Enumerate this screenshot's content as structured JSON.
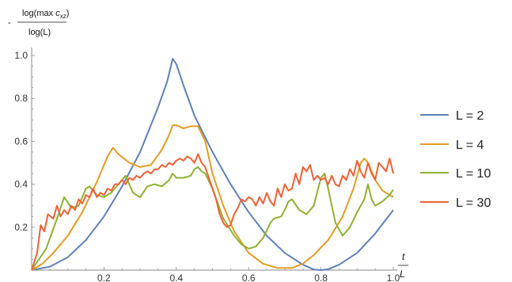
{
  "chart_data": {
    "type": "line",
    "title": "",
    "ylabel_prefix": "-",
    "ylabel_numerator_prefix": "log(max ",
    "ylabel_numerator_var": "c",
    "ylabel_numerator_sub": "xz",
    "ylabel_numerator_suffix": ")",
    "ylabel_denominator": "log(L)",
    "xlabel_numerator": "t",
    "xlabel_denominator": "L",
    "xlim": [
      0,
      1.0
    ],
    "ylim": [
      0,
      1.0
    ],
    "x_ticks": [
      0.2,
      0.4,
      0.6,
      0.8,
      1.0
    ],
    "x_tick_labels": [
      "0.2",
      "0.4",
      "0.6",
      "0.8",
      "1.0"
    ],
    "y_ticks": [
      0.2,
      0.4,
      0.6,
      0.8,
      1.0
    ],
    "y_tick_labels": [
      "0.2",
      "0.4",
      "0.6",
      "0.8",
      "1.0"
    ],
    "grid": false,
    "legend_position": "right",
    "series": [
      {
        "name": "L = 2",
        "color": "#5E81B5",
        "points": [
          [
            0,
            0
          ],
          [
            0.05,
            0.016
          ],
          [
            0.1,
            0.06
          ],
          [
            0.15,
            0.14
          ],
          [
            0.2,
            0.25
          ],
          [
            0.25,
            0.39
          ],
          [
            0.3,
            0.55
          ],
          [
            0.35,
            0.76
          ],
          [
            0.375,
            0.88
          ],
          [
            0.39,
            0.985
          ],
          [
            0.4,
            0.96
          ],
          [
            0.42,
            0.86
          ],
          [
            0.45,
            0.72
          ],
          [
            0.5,
            0.55
          ],
          [
            0.55,
            0.4
          ],
          [
            0.6,
            0.27
          ],
          [
            0.65,
            0.16
          ],
          [
            0.7,
            0.08
          ],
          [
            0.75,
            0.025
          ],
          [
            0.78,
            0.003
          ],
          [
            0.8,
            0
          ],
          [
            0.82,
            0.004
          ],
          [
            0.85,
            0.025
          ],
          [
            0.9,
            0.08
          ],
          [
            0.95,
            0.17
          ],
          [
            1.0,
            0.28
          ]
        ]
      },
      {
        "name": "L = 4",
        "color": "#E19C24",
        "points": [
          [
            0,
            0
          ],
          [
            0.03,
            0.03
          ],
          [
            0.06,
            0.08
          ],
          [
            0.1,
            0.16
          ],
          [
            0.14,
            0.27
          ],
          [
            0.18,
            0.41
          ],
          [
            0.21,
            0.53
          ],
          [
            0.225,
            0.57
          ],
          [
            0.24,
            0.54
          ],
          [
            0.27,
            0.5
          ],
          [
            0.3,
            0.48
          ],
          [
            0.33,
            0.49
          ],
          [
            0.36,
            0.56
          ],
          [
            0.38,
            0.63
          ],
          [
            0.39,
            0.675
          ],
          [
            0.4,
            0.675
          ],
          [
            0.42,
            0.66
          ],
          [
            0.44,
            0.67
          ],
          [
            0.46,
            0.67
          ],
          [
            0.48,
            0.6
          ],
          [
            0.5,
            0.45
          ],
          [
            0.53,
            0.3
          ],
          [
            0.56,
            0.18
          ],
          [
            0.6,
            0.08
          ],
          [
            0.64,
            0.03
          ],
          [
            0.68,
            0.01
          ],
          [
            0.72,
            0.01
          ],
          [
            0.75,
            0.03
          ],
          [
            0.78,
            0.07
          ],
          [
            0.82,
            0.14
          ],
          [
            0.86,
            0.25
          ],
          [
            0.89,
            0.38
          ],
          [
            0.91,
            0.5
          ],
          [
            0.92,
            0.52
          ],
          [
            0.93,
            0.5
          ],
          [
            0.95,
            0.42
          ],
          [
            0.97,
            0.37
          ],
          [
            1.0,
            0.34
          ]
        ]
      },
      {
        "name": "L = 10",
        "color": "#8FB032",
        "points": [
          [
            0,
            0
          ],
          [
            0.04,
            0.1
          ],
          [
            0.07,
            0.24
          ],
          [
            0.09,
            0.34
          ],
          [
            0.11,
            0.29
          ],
          [
            0.13,
            0.3
          ],
          [
            0.15,
            0.38
          ],
          [
            0.16,
            0.39
          ],
          [
            0.18,
            0.35
          ],
          [
            0.2,
            0.34
          ],
          [
            0.22,
            0.36
          ],
          [
            0.24,
            0.4
          ],
          [
            0.26,
            0.44
          ],
          [
            0.28,
            0.36
          ],
          [
            0.3,
            0.34
          ],
          [
            0.32,
            0.39
          ],
          [
            0.34,
            0.4
          ],
          [
            0.36,
            0.39
          ],
          [
            0.38,
            0.42
          ],
          [
            0.39,
            0.45
          ],
          [
            0.4,
            0.43
          ],
          [
            0.42,
            0.43
          ],
          [
            0.44,
            0.44
          ],
          [
            0.45,
            0.47
          ],
          [
            0.46,
            0.48
          ],
          [
            0.47,
            0.46
          ],
          [
            0.48,
            0.45
          ],
          [
            0.5,
            0.38
          ],
          [
            0.53,
            0.24
          ],
          [
            0.56,
            0.16
          ],
          [
            0.58,
            0.12
          ],
          [
            0.6,
            0.1
          ],
          [
            0.62,
            0.11
          ],
          [
            0.64,
            0.15
          ],
          [
            0.66,
            0.22
          ],
          [
            0.67,
            0.24
          ],
          [
            0.69,
            0.25
          ],
          [
            0.7,
            0.28
          ],
          [
            0.71,
            0.32
          ],
          [
            0.72,
            0.33
          ],
          [
            0.74,
            0.28
          ],
          [
            0.76,
            0.26
          ],
          [
            0.78,
            0.3
          ],
          [
            0.8,
            0.43
          ],
          [
            0.81,
            0.45
          ],
          [
            0.82,
            0.38
          ],
          [
            0.84,
            0.22
          ],
          [
            0.86,
            0.16
          ],
          [
            0.88,
            0.2
          ],
          [
            0.9,
            0.27
          ],
          [
            0.92,
            0.33
          ],
          [
            0.93,
            0.4
          ],
          [
            0.94,
            0.33
          ],
          [
            0.95,
            0.3
          ],
          [
            0.97,
            0.32
          ],
          [
            0.99,
            0.35
          ],
          [
            1.0,
            0.375
          ]
        ]
      },
      {
        "name": "L = 30",
        "color": "#EB6235",
        "points": [
          [
            0,
            0
          ],
          [
            0.015,
            0.08
          ],
          [
            0.025,
            0.21
          ],
          [
            0.035,
            0.18
          ],
          [
            0.045,
            0.26
          ],
          [
            0.06,
            0.24
          ],
          [
            0.07,
            0.3
          ],
          [
            0.08,
            0.25
          ],
          [
            0.09,
            0.28
          ],
          [
            0.1,
            0.26
          ],
          [
            0.11,
            0.3
          ],
          [
            0.12,
            0.28
          ],
          [
            0.13,
            0.33
          ],
          [
            0.14,
            0.31
          ],
          [
            0.15,
            0.35
          ],
          [
            0.16,
            0.34
          ],
          [
            0.17,
            0.38
          ],
          [
            0.18,
            0.34
          ],
          [
            0.19,
            0.36
          ],
          [
            0.2,
            0.35
          ],
          [
            0.21,
            0.38
          ],
          [
            0.22,
            0.37
          ],
          [
            0.23,
            0.4
          ],
          [
            0.24,
            0.4
          ],
          [
            0.25,
            0.42
          ],
          [
            0.26,
            0.4
          ],
          [
            0.27,
            0.43
          ],
          [
            0.28,
            0.42
          ],
          [
            0.29,
            0.44
          ],
          [
            0.3,
            0.43
          ],
          [
            0.31,
            0.45
          ],
          [
            0.32,
            0.46
          ],
          [
            0.33,
            0.45
          ],
          [
            0.34,
            0.47
          ],
          [
            0.35,
            0.47
          ],
          [
            0.36,
            0.49
          ],
          [
            0.37,
            0.48
          ],
          [
            0.38,
            0.5
          ],
          [
            0.39,
            0.49
          ],
          [
            0.4,
            0.51
          ],
          [
            0.41,
            0.52
          ],
          [
            0.42,
            0.51
          ],
          [
            0.43,
            0.53
          ],
          [
            0.44,
            0.52
          ],
          [
            0.45,
            0.5
          ],
          [
            0.46,
            0.54
          ],
          [
            0.47,
            0.5
          ],
          [
            0.48,
            0.48
          ],
          [
            0.5,
            0.38
          ],
          [
            0.51,
            0.33
          ],
          [
            0.52,
            0.26
          ],
          [
            0.53,
            0.22
          ],
          [
            0.54,
            0.2
          ],
          [
            0.55,
            0.21
          ],
          [
            0.56,
            0.26
          ],
          [
            0.57,
            0.29
          ],
          [
            0.58,
            0.33
          ],
          [
            0.59,
            0.32
          ],
          [
            0.6,
            0.34
          ],
          [
            0.61,
            0.33
          ],
          [
            0.62,
            0.3
          ],
          [
            0.63,
            0.34
          ],
          [
            0.64,
            0.31
          ],
          [
            0.65,
            0.36
          ],
          [
            0.66,
            0.32
          ],
          [
            0.67,
            0.3
          ],
          [
            0.68,
            0.38
          ],
          [
            0.69,
            0.34
          ],
          [
            0.7,
            0.4
          ],
          [
            0.71,
            0.37
          ],
          [
            0.72,
            0.38
          ],
          [
            0.73,
            0.45
          ],
          [
            0.74,
            0.4
          ],
          [
            0.75,
            0.48
          ],
          [
            0.76,
            0.46
          ],
          [
            0.77,
            0.49
          ],
          [
            0.78,
            0.42
          ],
          [
            0.79,
            0.44
          ],
          [
            0.8,
            0.42
          ],
          [
            0.81,
            0.43
          ],
          [
            0.82,
            0.4
          ],
          [
            0.83,
            0.44
          ],
          [
            0.84,
            0.4
          ],
          [
            0.85,
            0.39
          ],
          [
            0.86,
            0.44
          ],
          [
            0.87,
            0.42
          ],
          [
            0.88,
            0.47
          ],
          [
            0.89,
            0.44
          ],
          [
            0.9,
            0.51
          ],
          [
            0.91,
            0.46
          ],
          [
            0.92,
            0.43
          ],
          [
            0.93,
            0.5
          ],
          [
            0.94,
            0.45
          ],
          [
            0.95,
            0.42
          ],
          [
            0.96,
            0.5
          ],
          [
            0.97,
            0.48
          ],
          [
            0.98,
            0.46
          ],
          [
            0.99,
            0.52
          ],
          [
            1.0,
            0.45
          ]
        ]
      }
    ]
  }
}
